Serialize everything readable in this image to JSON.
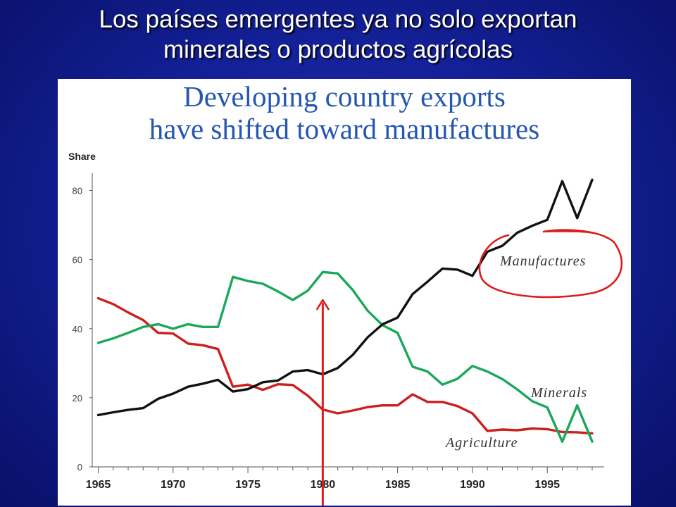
{
  "slide": {
    "title_line1": "Los países emergentes ya no solo exportan",
    "title_line2": "minerales o productos agrícolas"
  },
  "colors": {
    "background": "#14219a",
    "manufactures": "#111111",
    "minerals": "#1aa85a",
    "agriculture": "#cc1f1f",
    "annotation": "#e01b1b",
    "chart_title": "#2457b0"
  },
  "chart_data": {
    "type": "line",
    "title_line1": "Developing country exports",
    "title_line2": "have shifted toward manufactures",
    "ylabel": "Share",
    "xlim": [
      1964.6,
      1998.8
    ],
    "ylim": [
      0,
      85
    ],
    "x_ticks": [
      1965,
      1970,
      1975,
      1980,
      1985,
      1990,
      1995
    ],
    "y_ticks": [
      0,
      20,
      40,
      60,
      80
    ],
    "grid": false,
    "series": [
      {
        "name": "Manufactures",
        "color": "#111111",
        "x": [
          1965,
          1966,
          1967,
          1968,
          1969,
          1970,
          1971,
          1972,
          1973,
          1974,
          1975,
          1976,
          1977,
          1978,
          1979,
          1980,
          1981,
          1982,
          1983,
          1984,
          1985,
          1986,
          1987,
          1988,
          1989,
          1990,
          1991,
          1992,
          1993,
          1994,
          1995,
          1996,
          1997,
          1998
        ],
        "values": [
          15,
          15.8,
          16.5,
          17,
          19.7,
          21.2,
          23.2,
          24.1,
          25.2,
          21.8,
          22.5,
          24.5,
          25,
          27.6,
          28,
          26.8,
          28.6,
          32.4,
          37.5,
          41.3,
          43.2,
          50,
          53.6,
          57.4,
          57.1,
          55.3,
          62.3,
          64,
          67.8,
          69.8,
          71.5,
          82.7,
          72,
          83.1
        ]
      },
      {
        "name": "Minerals",
        "color": "#1aa85a",
        "x": [
          1965,
          1966,
          1967,
          1968,
          1969,
          1970,
          1971,
          1972,
          1973,
          1974,
          1975,
          1976,
          1977,
          1978,
          1979,
          1980,
          1981,
          1982,
          1983,
          1984,
          1985,
          1986,
          1987,
          1988,
          1989,
          1990,
          1991,
          1992,
          1993,
          1994,
          1995,
          1996,
          1997,
          1998
        ],
        "values": [
          35.9,
          37.2,
          38.8,
          40.5,
          41.3,
          40,
          41.3,
          40.5,
          40.5,
          55,
          53.8,
          53,
          50.8,
          48.3,
          51,
          56.4,
          56,
          51.2,
          45.2,
          41,
          38.8,
          29,
          27.6,
          23.8,
          25.5,
          29.2,
          27.6,
          25.4,
          22.4,
          19,
          17.2,
          7.3,
          17.8,
          7.3
        ]
      },
      {
        "name": "Agriculture",
        "color": "#cc1f1f",
        "x": [
          1965,
          1966,
          1967,
          1968,
          1969,
          1970,
          1971,
          1972,
          1973,
          1974,
          1975,
          1976,
          1977,
          1978,
          1979,
          1980,
          1981,
          1982,
          1983,
          1984,
          1985,
          1986,
          1987,
          1988,
          1989,
          1990,
          1991,
          1992,
          1993,
          1994,
          1995,
          1996,
          1997,
          1998
        ],
        "values": [
          48.8,
          47.1,
          44.7,
          42.5,
          38.8,
          38.6,
          35.7,
          35.2,
          34.1,
          23.2,
          23.8,
          22.3,
          23.9,
          23.7,
          20.6,
          16.6,
          15.5,
          16.3,
          17.3,
          17.8,
          17.8,
          21,
          18.8,
          18.8,
          17.6,
          15.5,
          10.4,
          10.8,
          10.6,
          11.1,
          10.9,
          10.1,
          10,
          9.7
        ]
      }
    ],
    "series_labels": [
      "Manufactures",
      "Minerals",
      "Agriculture"
    ],
    "annotation_arrow_x": 1980
  }
}
